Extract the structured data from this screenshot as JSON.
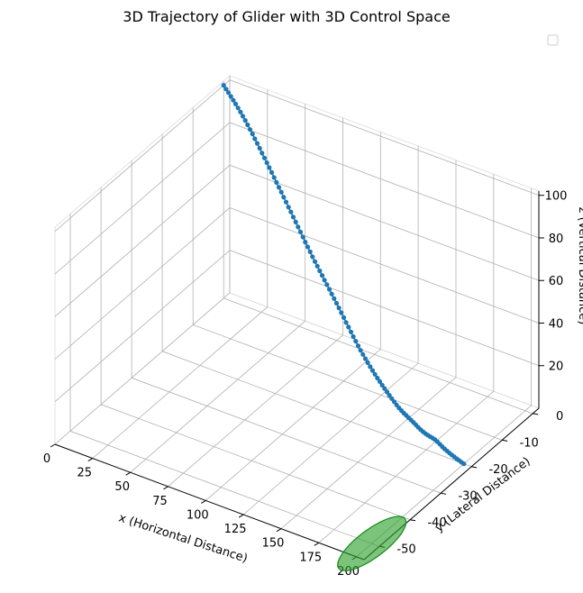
{
  "chart_data": {
    "type": "scatter",
    "projection": "3d",
    "title": "3D Trajectory of Glider with 3D Control Space",
    "xlabel": "x (Horizontal Distance)",
    "ylabel": "y (Lateral Distance)",
    "zlabel": "z (Vertical Distance)",
    "xlim": [
      0,
      205
    ],
    "ylim": [
      -55,
      2
    ],
    "zlim": [
      0,
      102
    ],
    "x_ticks": [
      0,
      25,
      50,
      75,
      100,
      125,
      150,
      175,
      200
    ],
    "y_ticks": [
      0,
      -10,
      -20,
      -30,
      -40,
      -50
    ],
    "z_ticks": [
      20,
      40,
      60,
      80,
      100
    ],
    "grid": true,
    "legend": {
      "placement": "top-right",
      "entries": []
    },
    "colors": {
      "trajectory": "#1f77b4",
      "control_space": "#2ca02c"
    },
    "series": [
      {
        "marker": "o",
        "line": "solid",
        "x": [
          0,
          2,
          4,
          6,
          8,
          10,
          12,
          14,
          16,
          18,
          20,
          22,
          24,
          26,
          28,
          30,
          32,
          34,
          36,
          38,
          40,
          42,
          44,
          46,
          48,
          50,
          52,
          54,
          56,
          58,
          60,
          62,
          64,
          66,
          68,
          70,
          72,
          74,
          76,
          78,
          80,
          82,
          84,
          86,
          88,
          90,
          92,
          94,
          96,
          98,
          100,
          102,
          104,
          106,
          108,
          110,
          112,
          114,
          116,
          118,
          120,
          122,
          124,
          126,
          128,
          130,
          132,
          134,
          136,
          138,
          140,
          142,
          144,
          146,
          148,
          150,
          152,
          154,
          156,
          158,
          160,
          162,
          164,
          166,
          168,
          170,
          172,
          174,
          176,
          178,
          180,
          182,
          184,
          186,
          188,
          190,
          192,
          194,
          196,
          198,
          200
        ],
        "y": [
          0,
          -0.2,
          -0.4,
          -0.6,
          -0.8,
          -1.0,
          -1.2,
          -1.4,
          -1.6,
          -1.8,
          -2.0,
          -2.2,
          -2.4,
          -2.6,
          -2.8,
          -3.0,
          -3.2,
          -3.4,
          -3.6,
          -3.8,
          -4.0,
          -4.2,
          -4.4,
          -4.6,
          -4.8,
          -5.0,
          -5.2,
          -5.4,
          -5.6,
          -5.8,
          -6.0,
          -6.2,
          -6.4,
          -6.6,
          -6.8,
          -7.0,
          -7.2,
          -7.4,
          -7.6,
          -7.8,
          -8.0,
          -8.2,
          -8.4,
          -8.6,
          -8.8,
          -9.0,
          -9.2,
          -9.4,
          -9.6,
          -9.8,
          -10.0,
          -10.2,
          -10.4,
          -10.6,
          -10.8,
          -11.0,
          -11.2,
          -11.4,
          -11.6,
          -11.8,
          -12.0,
          -12.2,
          -12.4,
          -12.6,
          -12.8,
          -13.0,
          -13.2,
          -13.4,
          -13.6,
          -13.8,
          -14.0,
          -14.2,
          -14.4,
          -14.6,
          -14.8,
          -15.0,
          -15.2,
          -15.4,
          -15.6,
          -15.8,
          -16.0,
          -16.2,
          -16.4,
          -16.6,
          -16.8,
          -17.0,
          -17.2,
          -17.4,
          -17.6,
          -17.8,
          -18.0,
          -18.2,
          -18.4,
          -18.6,
          -18.8,
          -19.0,
          -19.2,
          -19.4,
          -19.6,
          -19.8,
          -20.0
        ],
        "z": [
          100.0,
          99.0,
          98.1,
          97.1,
          96.1,
          95.1,
          94.0,
          92.9,
          91.7,
          90.5,
          89.2,
          87.8,
          86.5,
          85.0,
          83.6,
          82.1,
          80.6,
          79.1,
          77.6,
          76.1,
          74.6,
          73.0,
          71.5,
          70.0,
          68.5,
          66.9,
          65.4,
          63.8,
          62.3,
          60.7,
          59.1,
          57.6,
          56.0,
          54.4,
          52.8,
          51.3,
          49.8,
          48.3,
          46.8,
          45.4,
          44.0,
          42.6,
          41.2,
          39.8,
          38.4,
          37.0,
          35.6,
          34.2,
          32.8,
          31.3,
          29.8,
          28.3,
          26.9,
          25.4,
          24.0,
          22.6,
          21.2,
          19.9,
          18.7,
          17.5,
          16.4,
          15.3,
          14.3,
          13.3,
          12.3,
          11.4,
          10.5,
          9.7,
          8.9,
          8.1,
          7.3,
          6.6,
          5.9,
          5.3,
          4.8,
          4.4,
          4.1,
          3.8,
          3.5,
          3.2,
          2.8,
          2.4,
          2.1,
          1.9,
          1.8,
          1.8,
          1.9,
          2.0,
          2.0,
          1.8,
          1.5,
          1.1,
          0.8,
          0.6,
          0.4,
          0.3,
          0.2,
          0.1,
          0.1,
          0.0,
          0.0
        ]
      }
    ],
    "control_space": {
      "shape": "ellipse",
      "center": {
        "x": 200,
        "y": -50,
        "z": 0
      },
      "radius": 10
    }
  }
}
